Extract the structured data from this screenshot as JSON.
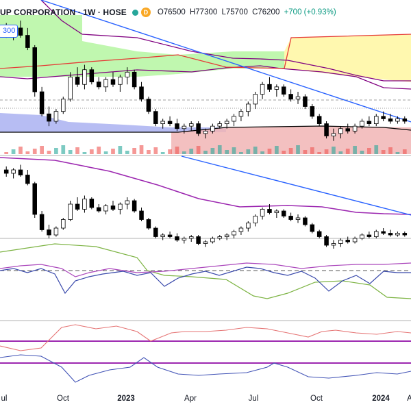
{
  "header": {
    "symbol": "UP CORPORATION · 1W · HOSE",
    "open_label": "O76500",
    "high_label": "H77300",
    "low_label": "L75700",
    "close_label": "C76200",
    "change_label": "+700 (+0.93%)",
    "badge_letter": "D"
  },
  "price_tag": "300",
  "x_axis_labels": [
    {
      "text": "ul",
      "bold": false
    },
    {
      "text": "Oct",
      "bold": false
    },
    {
      "text": "2023",
      "bold": true
    },
    {
      "text": "Apr",
      "bold": false
    },
    {
      "text": "Jul",
      "bold": false
    },
    {
      "text": "Oct",
      "bold": false
    },
    {
      "text": "2024",
      "bold": true
    },
    {
      "text": "A",
      "bold": false
    }
  ],
  "colors": {
    "up_candle": "#ffffff",
    "down_candle": "#000000",
    "cloud_bull": "#b9f6a6",
    "cloud_bear": "#fff7a6",
    "trendline": "#2962ff",
    "ma_line": "#9c27b0",
    "kijun": "#800080",
    "tenkan_red": "#e53935",
    "header_dot": "#26a69a",
    "header_badge": "#f9a825"
  },
  "chart_data": {
    "type": "candlestick",
    "interval": "1W",
    "exchange": "HOSE",
    "x_start": "2022-07",
    "x_end": "2024-04",
    "ohlc": [
      [
        70,
        72,
        66,
        68
      ],
      [
        68,
        71,
        65,
        70
      ],
      [
        70,
        73,
        66,
        67
      ],
      [
        67,
        70,
        61,
        62
      ],
      [
        62,
        63,
        42,
        44
      ],
      [
        44,
        46,
        34,
        35
      ],
      [
        35,
        38,
        30,
        32
      ],
      [
        32,
        37,
        31,
        36
      ],
      [
        36,
        42,
        35,
        41
      ],
      [
        41,
        52,
        40,
        50
      ],
      [
        50,
        54,
        46,
        47
      ],
      [
        47,
        55,
        45,
        53
      ],
      [
        53,
        54,
        47,
        48
      ],
      [
        48,
        50,
        45,
        46
      ],
      [
        46,
        50,
        44,
        49
      ],
      [
        49,
        52,
        46,
        47
      ],
      [
        47,
        51,
        44,
        50
      ],
      [
        50,
        54,
        47,
        52
      ],
      [
        52,
        53,
        45,
        46
      ],
      [
        46,
        48,
        40,
        41
      ],
      [
        41,
        42,
        35,
        36
      ],
      [
        36,
        37,
        30,
        31
      ],
      [
        31,
        33,
        29,
        32
      ],
      [
        32,
        34,
        30,
        31
      ],
      [
        31,
        33,
        28,
        29
      ],
      [
        29,
        31,
        27,
        30
      ],
      [
        30,
        32,
        28,
        31
      ],
      [
        31,
        32,
        26,
        27
      ],
      [
        27,
        29,
        25,
        28
      ],
      [
        28,
        31,
        27,
        30
      ],
      [
        30,
        32,
        29,
        31
      ],
      [
        31,
        33,
        29,
        32
      ],
      [
        32,
        35,
        30,
        34
      ],
      [
        34,
        37,
        32,
        36
      ],
      [
        36,
        40,
        34,
        39
      ],
      [
        39,
        44,
        37,
        43
      ],
      [
        43,
        48,
        41,
        47
      ],
      [
        47,
        50,
        44,
        45
      ],
      [
        45,
        47,
        42,
        46
      ],
      [
        46,
        47,
        42,
        43
      ],
      [
        43,
        45,
        40,
        41
      ],
      [
        41,
        44,
        39,
        42
      ],
      [
        42,
        43,
        37,
        38
      ],
      [
        38,
        39,
        33,
        34
      ],
      [
        34,
        35,
        30,
        31
      ],
      [
        31,
        32,
        25,
        26
      ],
      [
        26,
        29,
        24,
        27
      ],
      [
        27,
        30,
        25,
        29
      ],
      [
        29,
        31,
        27,
        28
      ],
      [
        28,
        31,
        27,
        30
      ],
      [
        30,
        33,
        29,
        32
      ],
      [
        32,
        34,
        30,
        31
      ],
      [
        31,
        35,
        30,
        34
      ],
      [
        34,
        36,
        32,
        33
      ],
      [
        33,
        35,
        31,
        32
      ],
      [
        32,
        34,
        31,
        33
      ],
      [
        33,
        34,
        31,
        32
      ]
    ],
    "ylim": [
      20,
      80
    ],
    "grid": false,
    "panels": [
      "price",
      "price_with_ma",
      "oscillator",
      "oscillator_bands"
    ]
  }
}
